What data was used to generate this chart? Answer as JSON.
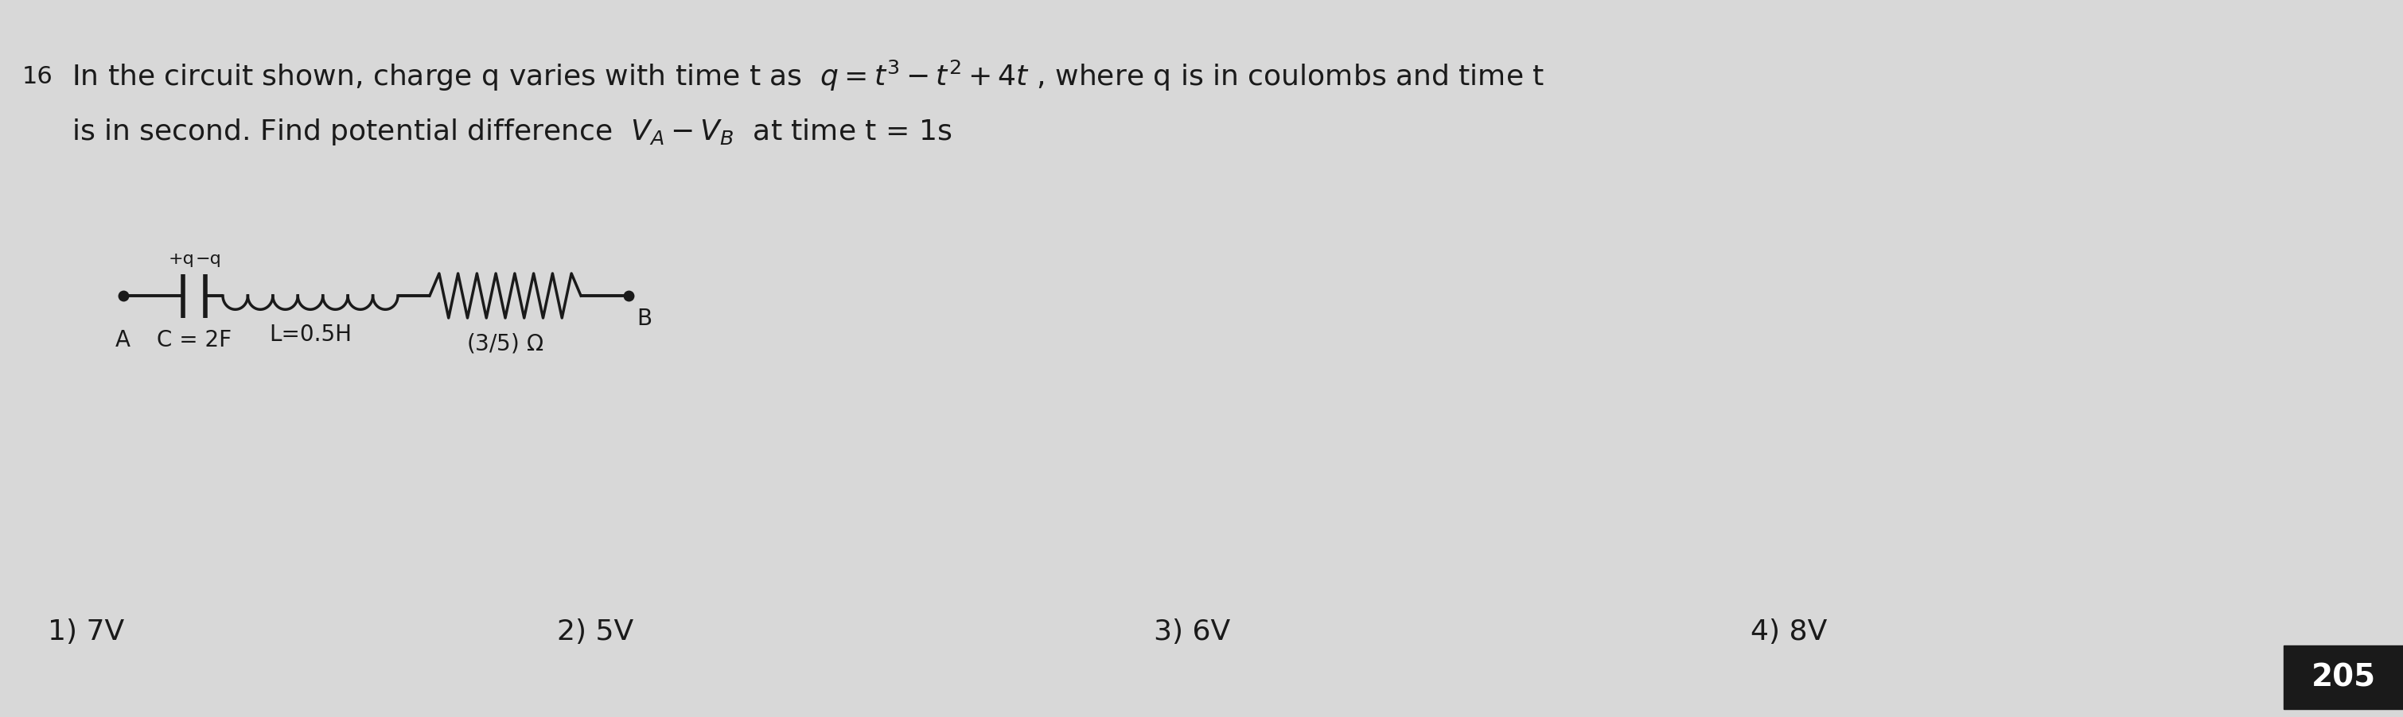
{
  "bg_color": "#d8d8d8",
  "question_number": "16",
  "line1": "In the circuit shown, charge q varies with time t as  $q = t^3 - t^2 + 4t$ , where q is in coulombs and time t",
  "line2": "is in second. Find potential difference  $V_A - V_B$  at time t = 1s",
  "options": [
    "1) 7V",
    "2) 5V",
    "3) 6V",
    "4) 8V"
  ],
  "answer_box": "205",
  "answer_box_color": "#1a1a1a",
  "answer_text_color": "#ffffff",
  "text_color": "#1a1a1a",
  "font_size_main": 26,
  "font_size_options": 26,
  "font_size_number": 22,
  "font_size_circuit": 20,
  "font_size_circuit_label": 16
}
